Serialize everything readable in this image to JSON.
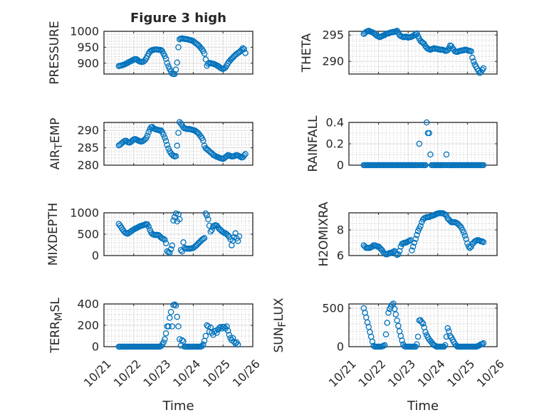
{
  "colors": {
    "marker": "#0072BD",
    "axes": "#262626"
  },
  "chart_data": [
    {
      "type": "scatter",
      "name": "pressure",
      "title": "Figure 3 high",
      "ylabel": [
        {
          "text": "PRESSURE"
        }
      ],
      "ylim": [
        866,
        1000
      ],
      "yticks": [
        900,
        950,
        1000
      ],
      "yticklabels": [
        "900",
        "950",
        "1000"
      ],
      "xlim": [
        0,
        5
      ],
      "xticks": [
        0,
        1,
        2,
        3,
        4,
        5
      ],
      "xticklabels": [],
      "xlabel": "",
      "x_units": "days since 10/21 00:00",
      "x_start": 0.5,
      "x_step": 0.0416667,
      "grid": true,
      "minor_grid": true,
      "marker": "open-circle",
      "y": [
        891,
        892,
        893,
        894,
        895,
        897,
        899,
        901,
        903,
        905,
        907,
        909,
        911,
        913,
        913,
        910,
        907,
        905,
        904,
        904,
        905,
        909,
        915,
        922,
        930,
        936,
        939,
        941,
        942,
        943,
        943,
        943,
        942,
        942,
        941,
        938,
        930,
        922,
        914,
        900,
        890,
        882,
        874,
        867,
        866,
        866,
        880,
        902,
        950,
        975,
        977,
        978,
        977,
        976,
        976,
        975,
        974,
        973,
        972,
        971,
        969,
        966,
        963,
        960,
        957,
        953,
        948,
        944,
        938,
        930,
        912,
        892,
        898,
        901,
        900,
        899,
        898,
        897,
        895,
        893,
        891,
        888,
        885,
        883,
        882,
        884,
        887,
        893,
        900,
        905,
        910,
        914,
        918,
        922,
        926,
        929,
        932,
        934,
        938,
        942,
        947,
        944,
        932
      ]
    },
    {
      "type": "scatter",
      "name": "theta",
      "ylabel": [
        {
          "text": "THETA"
        }
      ],
      "ylim": [
        287.6,
        295.7
      ],
      "yticks": [
        290,
        295
      ],
      "yticklabels": [
        "290",
        "295"
      ],
      "xlim": [
        0,
        5
      ],
      "xticks": [
        0,
        1,
        2,
        3,
        4,
        5
      ],
      "xticklabels": [],
      "xlabel": "",
      "x_units": "days since 10/21 00:00",
      "x_start": 0.5,
      "x_step": 0.0416667,
      "grid": true,
      "minor_grid": true,
      "marker": "open-circle",
      "y": [
        295.2,
        295.4,
        295.6,
        295.7,
        295.8,
        295.7,
        295.6,
        295.5,
        295.4,
        295.2,
        295.0,
        294.8,
        294.7,
        294.6,
        294.7,
        294.8,
        294.9,
        295.0,
        295.2,
        295.3,
        295.3,
        295.4,
        295.5,
        295.5,
        295.6,
        295.6,
        295.7,
        295.8,
        295.5,
        295.0,
        294.8,
        294.7,
        294.6,
        294.6,
        294.7,
        294.6,
        294.5,
        294.6,
        294.6,
        294.7,
        294.8,
        295.0,
        295.2,
        295.3,
        294.8,
        294.3,
        293.9,
        293.7,
        293.5,
        293.3,
        292.9,
        292.6,
        292.4,
        292.3,
        292.2,
        292.3,
        292.4,
        292.5,
        292.4,
        292.4,
        292.3,
        292.3,
        292.2,
        292.2,
        292.2,
        292.1,
        292.0,
        292.0,
        292.1,
        292.5,
        293.0,
        292.9,
        292.5,
        292.2,
        291.9,
        291.8,
        291.8,
        291.9,
        292.0,
        292.0,
        292.1,
        292.1,
        292.2,
        292.2,
        292.1,
        292.0,
        292.0,
        291.9,
        290.7,
        290.0,
        289.4,
        289.0,
        288.6,
        288.2,
        287.8,
        288.0,
        288.4,
        288.7
      ]
    },
    {
      "type": "scatter",
      "name": "air_temp",
      "ylabel": [
        {
          "text": "AIR"
        },
        {
          "text": "T",
          "sub": true
        },
        {
          "text": "EMP"
        }
      ],
      "ylim": [
        280,
        292.3
      ],
      "yticks": [
        280,
        285,
        290
      ],
      "yticklabels": [
        "280",
        "285",
        "290"
      ],
      "xlim": [
        0,
        5
      ],
      "xticks": [
        0,
        1,
        2,
        3,
        4,
        5
      ],
      "xticklabels": [],
      "xlabel": "",
      "x_units": "days since 10/21 00:00",
      "x_start": 0.5,
      "x_step": 0.0416667,
      "grid": true,
      "minor_grid": true,
      "marker": "open-circle",
      "y": [
        285.7,
        285.9,
        286.2,
        286.5,
        286.8,
        287.0,
        287.0,
        286.7,
        286.5,
        286.5,
        286.8,
        287.1,
        287.4,
        287.5,
        287.4,
        287.2,
        287.0,
        286.9,
        286.8,
        286.9,
        287.1,
        287.4,
        287.8,
        288.5,
        289.5,
        290.3,
        290.9,
        291.0,
        290.6,
        290.4,
        290.3,
        290.2,
        290.1,
        290.0,
        290.0,
        289.5,
        288.8,
        287.9,
        287.0,
        285.8,
        284.8,
        284.0,
        283.4,
        283.0,
        282.7,
        282.5,
        282.6,
        285.6,
        289.3,
        292.4,
        292.0,
        291.5,
        290.9,
        290.6,
        290.5,
        290.4,
        290.4,
        290.4,
        290.3,
        290.2,
        290.1,
        290.0,
        289.8,
        289.5,
        289.2,
        288.8,
        288.3,
        287.8,
        287.1,
        285.6,
        284.9,
        284.6,
        284.3,
        284.0,
        283.7,
        283.4,
        283.0,
        282.8,
        282.6,
        282.4,
        282.3,
        282.1,
        282.0,
        281.9,
        281.8,
        282.0,
        282.3,
        282.6,
        282.9,
        282.8,
        282.6,
        282.5,
        282.5,
        282.6,
        282.8,
        282.9,
        282.8,
        282.6,
        282.4,
        282.2,
        282.3,
        282.8,
        283.2
      ]
    },
    {
      "type": "scatter",
      "name": "rainfall",
      "ylabel": [
        {
          "text": "RAINFALL"
        }
      ],
      "ylim": [
        0,
        0.4
      ],
      "yticks": [
        0,
        0.2,
        0.4
      ],
      "yticklabels": [
        "0",
        "0.2",
        "0.4"
      ],
      "xlim": [
        0,
        5
      ],
      "xticks": [
        0,
        1,
        2,
        3,
        4,
        5
      ],
      "xticklabels": [],
      "xlabel": "",
      "x_units": "days since 10/21 00:00",
      "x_start": 0.5,
      "x_step": 0.0416667,
      "grid": true,
      "minor_grid": true,
      "marker": "open-circle",
      "y": [
        0,
        0,
        0,
        0,
        0,
        0,
        0,
        0,
        0,
        0,
        0,
        0,
        0,
        0,
        0,
        0,
        0,
        0,
        0,
        0,
        0,
        0,
        0,
        0,
        0,
        0,
        0,
        0,
        0,
        0,
        0,
        0,
        0,
        0,
        0,
        0,
        0,
        0,
        0,
        0,
        0,
        0,
        0,
        0,
        0,
        0.2,
        0,
        0,
        0,
        0,
        0,
        0.4,
        0.3,
        0.3,
        0.1,
        0,
        0,
        0,
        0,
        0,
        0,
        0,
        0,
        0,
        0,
        0,
        0,
        0.1,
        0,
        0,
        0,
        0,
        0,
        0,
        0,
        0,
        0,
        0,
        0,
        0,
        0,
        0,
        0,
        0,
        0,
        0,
        0,
        0,
        0,
        0,
        0,
        0,
        0,
        0,
        0,
        0,
        0,
        0
      ]
    },
    {
      "type": "scatter",
      "name": "mixdepth",
      "ylabel": [
        {
          "text": "MIXDEPTH"
        }
      ],
      "ylim": [
        0,
        1000
      ],
      "yticks": [
        0,
        500,
        1000
      ],
      "yticklabels": [
        "0",
        "500",
        "1000"
      ],
      "xlim": [
        0,
        5
      ],
      "xticks": [
        0,
        1,
        2,
        3,
        4,
        5
      ],
      "xticklabels": [],
      "xlabel": "",
      "x_units": "days since 10/21 00:00",
      "x_start": 0.5,
      "x_step": 0.0416667,
      "grid": true,
      "minor_grid": true,
      "marker": "open-circle",
      "y": [
        740,
        700,
        660,
        610,
        570,
        540,
        520,
        510,
        530,
        550,
        570,
        590,
        610,
        625,
        640,
        655,
        670,
        685,
        695,
        705,
        715,
        725,
        735,
        730,
        680,
        600,
        540,
        505,
        490,
        485,
        480,
        485,
        480,
        455,
        420,
        400,
        390,
        370,
        290,
        100,
        80,
        65,
        150,
        235,
        820,
        900,
        985,
        800,
        965,
        850,
        130,
        95,
        310,
        180,
        165,
        160,
        165,
        160,
        165,
        170,
        180,
        200,
        225,
        250,
        285,
        310,
        340,
        370,
        390,
        410,
        985,
        940,
        850,
        700,
        560,
        600,
        680,
        700,
        710,
        700,
        660,
        620,
        600,
        570,
        550,
        530,
        520,
        500,
        470,
        440,
        380,
        240,
        350,
        430,
        520,
        400,
        340,
        450
      ]
    },
    {
      "type": "scatter",
      "name": "h2omixra",
      "ylabel": [
        {
          "text": "H2OMIXRA"
        }
      ],
      "ylim": [
        6,
        9.33
      ],
      "yticks": [
        6,
        8
      ],
      "yticklabels": [
        "6",
        "8"
      ],
      "xlim": [
        0,
        5
      ],
      "xticks": [
        0,
        1,
        2,
        3,
        4,
        5
      ],
      "xticklabels": [],
      "xlabel": "",
      "x_units": "days since 10/21 00:00",
      "x_start": 0.5,
      "x_step": 0.0416667,
      "grid": true,
      "minor_grid": true,
      "marker": "open-circle",
      "y": [
        6.8,
        6.7,
        6.6,
        6.6,
        6.6,
        6.6,
        6.65,
        6.7,
        6.8,
        6.8,
        6.75,
        6.7,
        6.7,
        6.6,
        6.5,
        6.4,
        6.25,
        6.15,
        6.1,
        6.1,
        6.15,
        6.2,
        6.2,
        6.25,
        6.3,
        6.35,
        6.2,
        6.05,
        6.1,
        6.35,
        6.7,
        6.9,
        6.95,
        7.0,
        7.0,
        7.05,
        7.1,
        7.15,
        7.2,
        6.4,
        6.7,
        7.0,
        7.3,
        7.6,
        7.9,
        8.1,
        8.3,
        8.6,
        8.8,
        8.9,
        8.95,
        9.0,
        9.0,
        9.0,
        9.05,
        9.1,
        9.1,
        9.15,
        9.2,
        9.25,
        9.28,
        9.3,
        9.3,
        9.3,
        9.3,
        9.25,
        9.2,
        9.1,
        8.9,
        8.8,
        8.7,
        8.6,
        8.6,
        8.6,
        8.6,
        8.55,
        8.5,
        8.4,
        8.3,
        8.2,
        8.0,
        7.8,
        7.55,
        7.3,
        6.95,
        6.7,
        6.6,
        6.7,
        6.9,
        7.0,
        7.1,
        7.15,
        7.2,
        7.2,
        7.15,
        7.1,
        7.1,
        7.05
      ]
    },
    {
      "type": "scatter",
      "name": "terr_msl",
      "ylabel": [
        {
          "text": "TERR"
        },
        {
          "text": "M",
          "sub": true
        },
        {
          "text": "SL"
        }
      ],
      "ylim": [
        0,
        400
      ],
      "yticks": [
        0,
        200,
        400
      ],
      "yticklabels": [
        "0",
        "200",
        "400"
      ],
      "xlim": [
        0,
        5
      ],
      "xticks": [
        0,
        1,
        2,
        3,
        4,
        5
      ],
      "xticklabels": [
        "10/21",
        "10/22",
        "10/23",
        "10/24",
        "10/25",
        "10/26"
      ],
      "xlabel": "Time",
      "x_units": "days since 10/21 00:00",
      "x_start": 0.5,
      "x_step": 0.0416667,
      "grid": true,
      "minor_grid": true,
      "marker": "open-circle",
      "y": [
        0,
        0,
        0,
        0,
        0,
        0,
        0,
        0,
        0,
        0,
        0,
        0,
        0,
        0,
        0,
        0,
        0,
        0,
        0,
        0,
        0,
        0,
        0,
        0,
        0,
        0,
        0,
        0,
        0,
        0,
        0,
        0,
        0,
        0,
        5,
        20,
        40,
        70,
        125,
        190,
        190,
        270,
        325,
        190,
        390,
        395,
        385,
        280,
        190,
        70,
        10,
        60,
        50,
        0,
        0,
        0,
        0,
        0,
        0,
        0,
        0,
        0,
        0,
        0,
        0,
        0,
        0,
        5,
        20,
        55,
        100,
        200,
        190,
        140,
        180,
        130,
        110,
        140,
        150,
        130,
        160,
        175,
        185,
        170,
        185,
        185,
        170,
        190,
        150,
        110,
        80,
        60,
        80,
        45,
        30,
        40,
        20
      ]
    },
    {
      "type": "scatter",
      "name": "sun_flux",
      "ylabel": [
        {
          "text": "SUN"
        },
        {
          "text": "F",
          "sub": true
        },
        {
          "text": "LUX"
        }
      ],
      "ylim": [
        0,
        555
      ],
      "yticks": [
        0,
        500
      ],
      "yticklabels": [
        "0",
        "500"
      ],
      "xlim": [
        0,
        5
      ],
      "xticks": [
        0,
        1,
        2,
        3,
        4,
        5
      ],
      "xticklabels": [
        "10/21",
        "10/22",
        "10/23",
        "10/24",
        "10/25",
        "10/26"
      ],
      "xlabel": "Time",
      "x_units": "days since 10/21 00:00",
      "x_start": 0.5,
      "x_step": 0.0416667,
      "grid": true,
      "minor_grid": true,
      "marker": "open-circle",
      "y": [
        500,
        440,
        380,
        315,
        255,
        190,
        130,
        65,
        10,
        0,
        0,
        0,
        0,
        0,
        0,
        5,
        10,
        20,
        160,
        310,
        440,
        490,
        520,
        545,
        560,
        490,
        420,
        340,
        270,
        200,
        140,
        80,
        30,
        5,
        0,
        0,
        0,
        0,
        0,
        0,
        0,
        0,
        0,
        30,
        130,
        340,
        345,
        320,
        300,
        250,
        190,
        150,
        120,
        95,
        75,
        55,
        35,
        20,
        10,
        0,
        0,
        0,
        0,
        0,
        0,
        0,
        20,
        130,
        240,
        200,
        140,
        120,
        90,
        60,
        35,
        15,
        0,
        0,
        0,
        0,
        0,
        0,
        0,
        0,
        0,
        0,
        0,
        0,
        0,
        0,
        0,
        0,
        5,
        10,
        20,
        30,
        35,
        45
      ]
    }
  ]
}
